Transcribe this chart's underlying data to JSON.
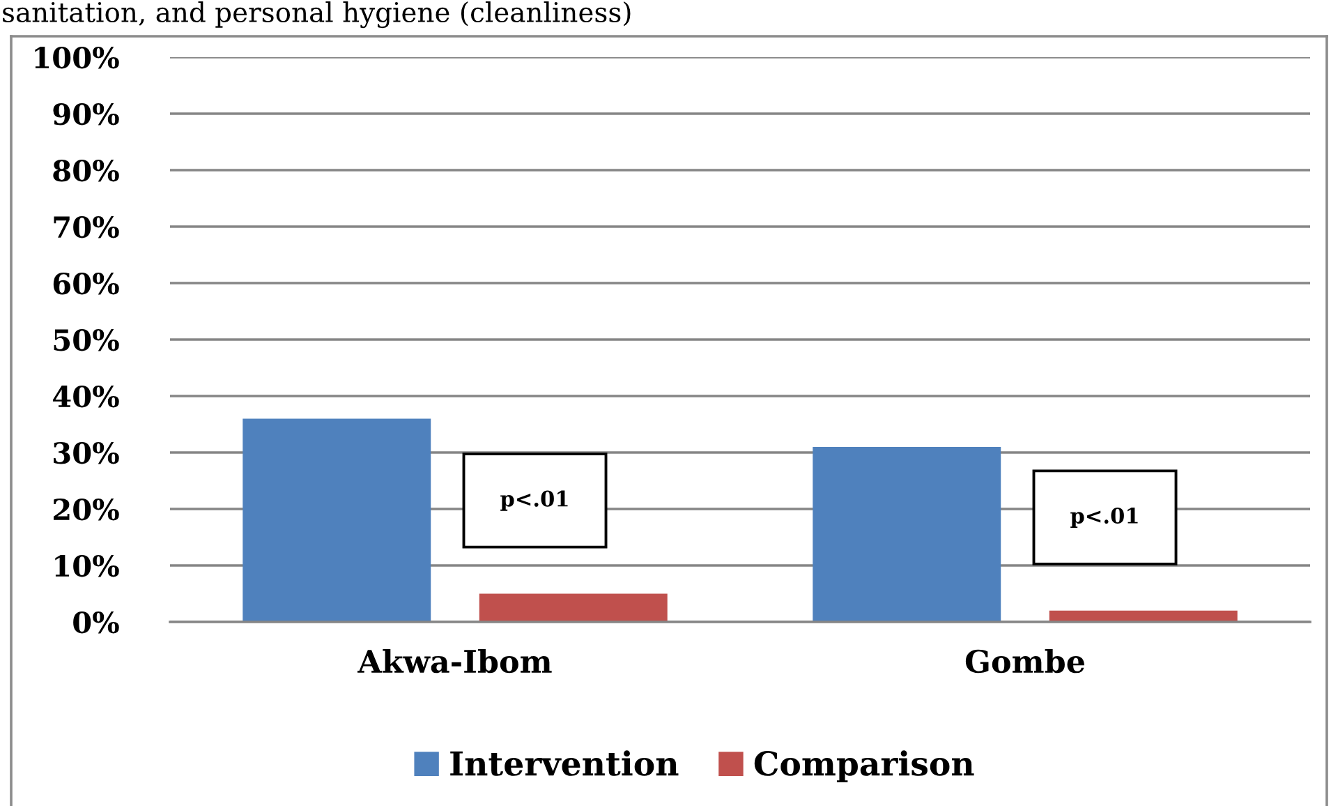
{
  "chart_data": {
    "type": "bar",
    "title": "sanitation, and personal hygiene (cleanliness)",
    "categories": [
      "Akwa-Ibom",
      "Gombe"
    ],
    "series": [
      {
        "name": "Intervention",
        "color": "#4f81bd",
        "values": [
          36,
          31
        ]
      },
      {
        "name": "Comparison",
        "color": "#c0504d",
        "values": [
          5,
          2
        ]
      }
    ],
    "ylim": [
      0,
      100
    ],
    "yticks": [
      {
        "value": 0,
        "label": "0%"
      },
      {
        "value": 10,
        "label": "10%"
      },
      {
        "value": 20,
        "label": "20%"
      },
      {
        "value": 30,
        "label": "30%"
      },
      {
        "value": 40,
        "label": "40%"
      },
      {
        "value": 50,
        "label": "50%"
      },
      {
        "value": 60,
        "label": "60%"
      },
      {
        "value": 70,
        "label": "70%"
      },
      {
        "value": 80,
        "label": "80%"
      },
      {
        "value": 90,
        "label": "90%"
      },
      {
        "value": 100,
        "label": "100%"
      }
    ],
    "grid": "y",
    "legend": "bottom",
    "annotations": [
      "p<.01",
      "p<.01"
    ]
  }
}
